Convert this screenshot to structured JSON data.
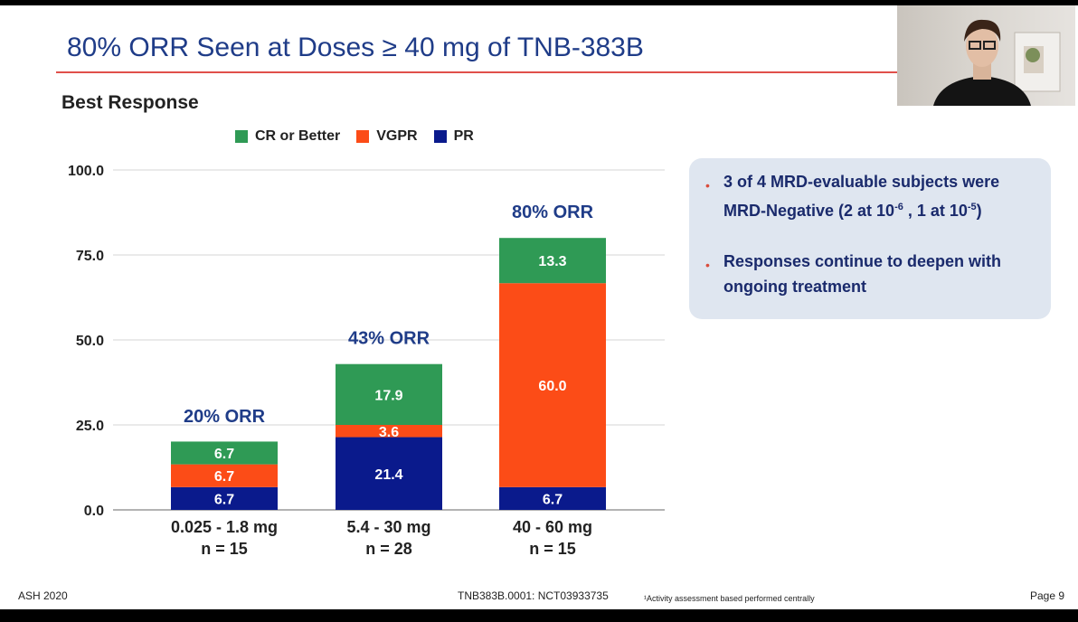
{
  "title": "80% ORR Seen at Doses ≥ 40 mg of TNB-383B",
  "subtitle": "Best Response",
  "legend": [
    {
      "label": "CR or Better",
      "color": "#2f9a55"
    },
    {
      "label": "VGPR",
      "color": "#fc4c17"
    },
    {
      "label": "PR",
      "color": "#0a1a8c"
    }
  ],
  "chart_data": {
    "type": "bar",
    "stacked": true,
    "categories": [
      "0.025 - 1.8 mg",
      "5.4 - 30 mg",
      "40 - 60 mg"
    ],
    "category_n": [
      "n = 15",
      "n = 28",
      "n = 15"
    ],
    "series": [
      {
        "name": "PR",
        "color": "#0a1a8c",
        "values": [
          6.7,
          21.4,
          6.7
        ]
      },
      {
        "name": "VGPR",
        "color": "#fc4c17",
        "values": [
          6.7,
          3.6,
          60.0
        ]
      },
      {
        "name": "CR or Better",
        "color": "#2f9a55",
        "values": [
          6.7,
          17.9,
          13.3
        ]
      }
    ],
    "bar_labels": [
      [
        "6.7",
        "6.7",
        "6.7"
      ],
      [
        "21.4",
        "3.6",
        "17.9"
      ],
      [
        "6.7",
        "60.0",
        "13.3"
      ]
    ],
    "totals": [
      20,
      43,
      80
    ],
    "orr_labels": [
      "20% ORR",
      "43% ORR",
      "80% ORR"
    ],
    "yticks": [
      "0.0",
      "25.0",
      "50.0",
      "75.0",
      "100.0"
    ],
    "ytick_values": [
      0,
      25,
      50,
      75,
      100
    ],
    "ylim": [
      0,
      100
    ],
    "grid": true
  },
  "callout": {
    "bullet1": {
      "line1": "3 of 4 MRD-evaluable subjects were",
      "line2_prefix": "MRD-Negative (2 at 10",
      "sup1": "-6",
      "mid": " , 1 at 10",
      "sup2": "-5",
      "suffix": ")"
    },
    "bullet2": "Responses continue to deepen with ongoing treatment"
  },
  "footer": {
    "left": "ASH 2020",
    "center": "TNB383B.0001: NCT03933735",
    "footnote": "¹Activity assessment based performed centrally",
    "page": "Page 9"
  }
}
